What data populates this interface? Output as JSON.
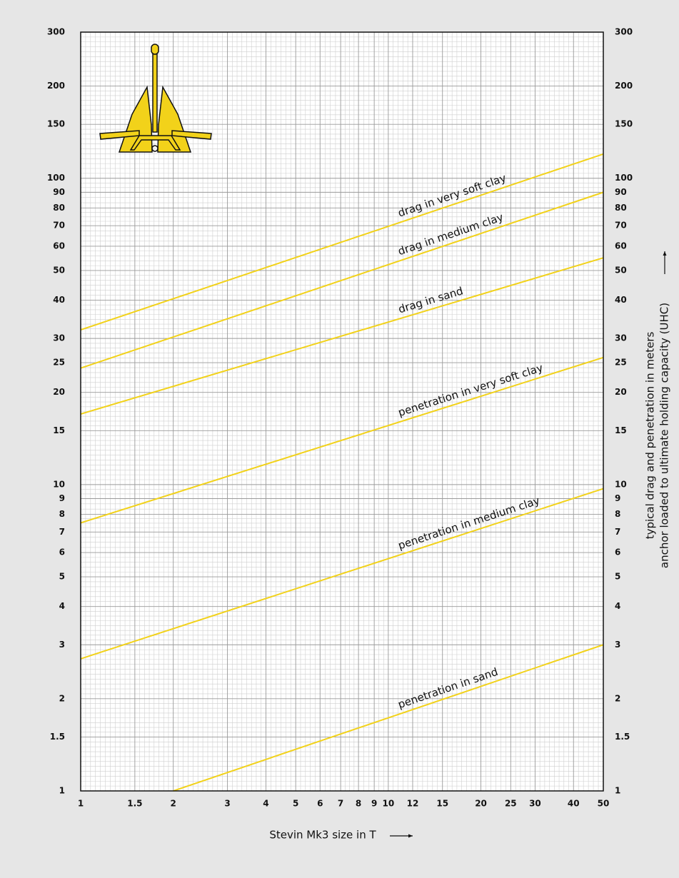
{
  "chart_data": {
    "type": "line",
    "xlabel": "Stevin Mk3 size in T",
    "ylabel": [
      "typical drag and penetration in meters",
      "anchor loaded to ultimate holding capacity (UHC)"
    ],
    "xscale": "log",
    "yscale": "log",
    "grid": true,
    "xlim": [
      1,
      50
    ],
    "ylim": [
      1,
      300
    ],
    "xticks": [
      1,
      1.5,
      2,
      3,
      4,
      5,
      6,
      7,
      8,
      9,
      10,
      12,
      15,
      20,
      25,
      30,
      40,
      50
    ],
    "yticks": [
      1,
      1.5,
      2,
      3,
      4,
      5,
      6,
      7,
      8,
      9,
      10,
      15,
      20,
      25,
      30,
      40,
      50,
      60,
      70,
      80,
      90,
      100,
      150,
      200,
      300
    ],
    "series": [
      {
        "name": "drag in very soft clay",
        "color": "#f2d21a",
        "x": [
          1,
          50
        ],
        "values": [
          32,
          120
        ]
      },
      {
        "name": "drag in medium clay",
        "color": "#f2d21a",
        "x": [
          1,
          50
        ],
        "values": [
          24,
          90
        ]
      },
      {
        "name": "drag in sand",
        "color": "#f2d21a",
        "x": [
          1,
          50
        ],
        "values": [
          17,
          55
        ]
      },
      {
        "name": "penetration in very soft clay",
        "color": "#f2d21a",
        "x": [
          1,
          50
        ],
        "values": [
          7.5,
          26
        ]
      },
      {
        "name": "penetration in medium clay",
        "color": "#f2d21a",
        "x": [
          1,
          50
        ],
        "values": [
          2.7,
          9.7
        ]
      },
      {
        "name": "penetration in sand",
        "color": "#f2d21a",
        "x": [
          2,
          50
        ],
        "values": [
          1,
          3
        ]
      }
    ]
  }
}
